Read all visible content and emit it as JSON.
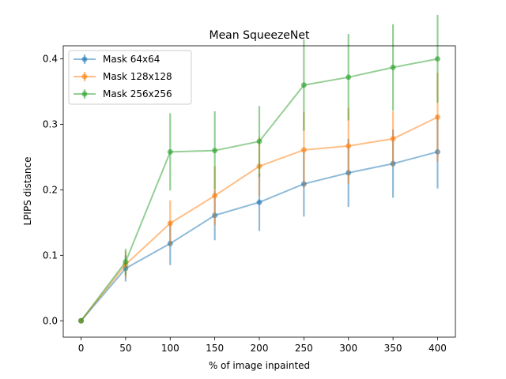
{
  "chart_data": {
    "type": "line",
    "title": "Mean SqueezeNet",
    "xlabel": "% of image inpainted",
    "ylabel": "LPIPS distance",
    "x": [
      0,
      50,
      100,
      150,
      200,
      250,
      300,
      350,
      400
    ],
    "xlim": [
      -20,
      420
    ],
    "ylim": [
      -0.025,
      0.42
    ],
    "xticks": [
      0,
      50,
      100,
      150,
      200,
      250,
      300,
      350,
      400
    ],
    "yticks": [
      0.0,
      0.1,
      0.2,
      0.3,
      0.4
    ],
    "ytick_labels": [
      "0.0",
      "0.1",
      "0.2",
      "0.3",
      "0.4"
    ],
    "grid": false,
    "legend_position": "upper-left",
    "series": [
      {
        "name": "Mask 64x64",
        "color": "#1f77b4",
        "values": [
          0.0,
          0.08,
          0.118,
          0.161,
          0.181,
          0.209,
          0.226,
          0.24,
          0.258
        ],
        "errors": [
          0.0,
          0.02,
          0.033,
          0.038,
          0.044,
          0.05,
          0.052,
          0.052,
          0.056
        ]
      },
      {
        "name": "Mask 128x128",
        "color": "#ff7f0e",
        "values": [
          0.0,
          0.086,
          0.149,
          0.191,
          0.236,
          0.261,
          0.267,
          0.278,
          0.311
        ],
        "errors": [
          0.0,
          0.02,
          0.035,
          0.045,
          0.045,
          0.058,
          0.058,
          0.042,
          0.068
        ]
      },
      {
        "name": "Mask 256x256",
        "color": "#2ca02c",
        "values": [
          0.0,
          0.09,
          0.258,
          0.26,
          0.274,
          0.36,
          0.372,
          0.387,
          0.4
        ],
        "errors": [
          0.0,
          0.02,
          0.059,
          0.06,
          0.054,
          0.07,
          0.066,
          0.066,
          0.067
        ]
      }
    ]
  }
}
